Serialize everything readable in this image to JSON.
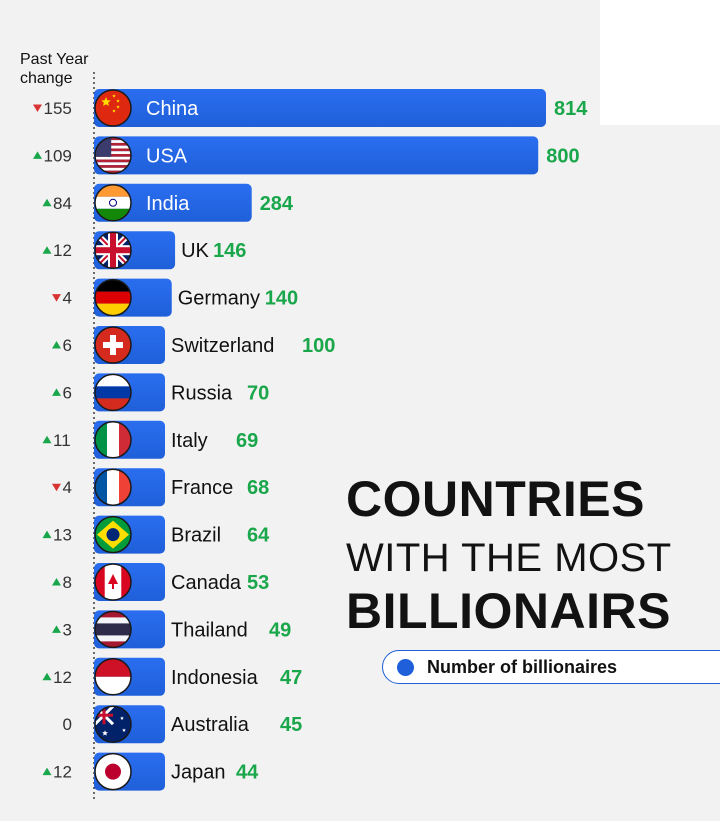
{
  "header": {
    "line1": "Past Year",
    "line2": "change"
  },
  "title": {
    "line1": "COUNTRIES",
    "line2": "WITH THE MOST",
    "line3": "BILLIONAIRS"
  },
  "legend": {
    "label": "Number of billionaires",
    "color": "#1f5fd9"
  },
  "colors": {
    "bar": "#1f5fd9",
    "value": "#1aa64a",
    "up": "#1aa64a",
    "down": "#d93434"
  },
  "chart_data": {
    "type": "bar",
    "orientation": "horizontal",
    "categories": [
      "China",
      "USA",
      "India",
      "UK",
      "Germany",
      "Switzerland",
      "Russia",
      "Italy",
      "France",
      "Brazil",
      "Canada",
      "Thailand",
      "Indonesia",
      "Australia",
      "Japan"
    ],
    "values": [
      814,
      800,
      284,
      146,
      140,
      100,
      70,
      69,
      68,
      64,
      53,
      49,
      47,
      45,
      44
    ],
    "change": [
      {
        "dir": "down",
        "text": "155"
      },
      {
        "dir": "up",
        "text": "109"
      },
      {
        "dir": "up",
        "text": "84"
      },
      {
        "dir": "up",
        "text": "12"
      },
      {
        "dir": "down",
        "text": "4"
      },
      {
        "dir": "up",
        "text": "6"
      },
      {
        "dir": "up",
        "text": "6"
      },
      {
        "dir": "up",
        "text": "11"
      },
      {
        "dir": "down",
        "text": "4"
      },
      {
        "dir": "up",
        "text": "13"
      },
      {
        "dir": "up",
        "text": "8"
      },
      {
        "dir": "up",
        "text": "3"
      },
      {
        "dir": "up",
        "text": "12"
      },
      {
        "dir": "none",
        "text": "0"
      },
      {
        "dir": "up",
        "text": "12"
      }
    ],
    "flags": [
      "china-flag-icon",
      "usa-flag-icon",
      "india-flag-icon",
      "uk-flag-icon",
      "germany-flag-icon",
      "switzerland-flag-icon",
      "russia-flag-icon",
      "italy-flag-icon",
      "france-flag-icon",
      "brazil-flag-icon",
      "canada-flag-icon",
      "thailand-flag-icon",
      "indonesia-flag-icon",
      "australia-flag-icon",
      "japan-flag-icon"
    ],
    "legend": [
      "Number of billionaires"
    ]
  }
}
